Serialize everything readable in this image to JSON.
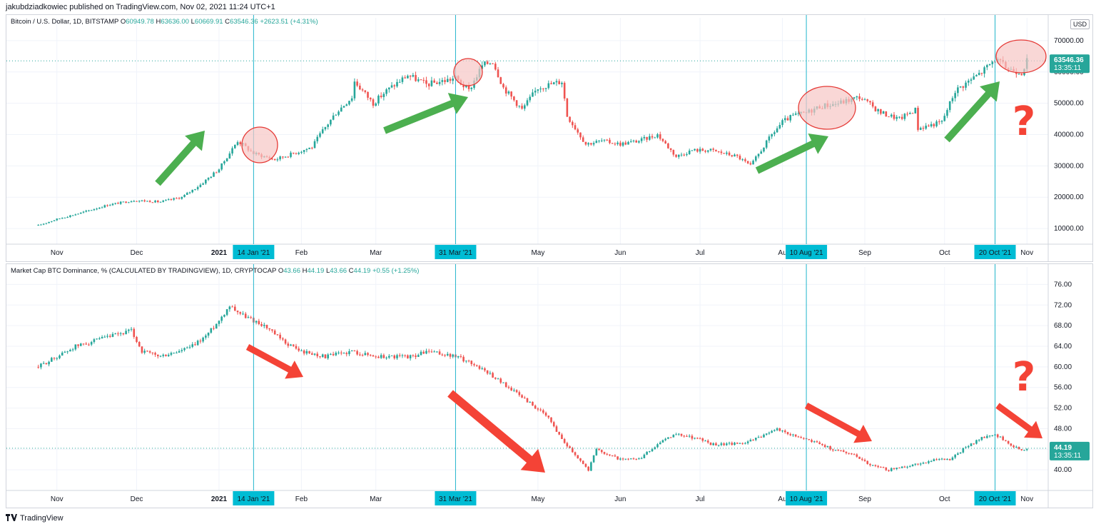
{
  "header": {
    "published": "jakubdziadkowiec published on TradingView.com, Nov 02, 2021 11:24 UTC+1"
  },
  "footer": {
    "brand": "TradingView",
    "logo": "tradingview-logo"
  },
  "colors": {
    "up": "#26a69a",
    "down": "#ef5350",
    "vline": "#22b5cc",
    "dateTag": "#00bcd4",
    "arrowGreen": "#4caf50",
    "arrowRed": "#f44336",
    "ellipseFill": "#f7c6c4",
    "ellipseStroke": "#e53935"
  },
  "pane1": {
    "symbol": "Bitcoin / U.S. Dollar, 1D, BITSTAMP",
    "o_label": "O",
    "o": "60949.78",
    "h_label": "H",
    "h": "63636.00",
    "l_label": "L",
    "l": "60669.91",
    "c_label": "C",
    "c": "63546.36",
    "change": "+2623.51 (+4.31%)",
    "currency": "USD",
    "price_tag": "63546.36",
    "timer": "13:35:11"
  },
  "pane2": {
    "symbol": "Market Cap BTC Dominance, % (CALCULATED BY TRADINGVIEW), 1D, CRYPTOCAP",
    "o_label": "O",
    "o": "43.66",
    "h_label": "H",
    "h": "44.19",
    "l_label": "L",
    "l": "43.66",
    "c_label": "C",
    "c": "44.19",
    "change": "+0.55 (+1.25%)",
    "price_tag": "44.19",
    "timer": "13:35:11"
  },
  "chart_data": [
    {
      "type": "line",
      "series": [
        {
          "name": "Bitcoin / U.S. Dollar",
          "values": [
            11000,
            13000,
            15000,
            17500,
            19000,
            18500,
            20000,
            24000,
            29000,
            38000,
            34000,
            32000,
            34000,
            36000,
            40000,
            47000,
            52000,
            57000,
            50000,
            54000,
            59000,
            56000,
            58000,
            54000,
            62000,
            63500,
            55000,
            48000,
            55000,
            57000,
            46000,
            37000,
            38000,
            37000,
            38000,
            40000,
            33000,
            35000,
            35000,
            34000,
            33000,
            30000,
            40000,
            44000,
            46000,
            47000,
            49000,
            50000,
            52000,
            47000,
            45000,
            48000,
            42000,
            44000,
            54000,
            60000,
            64000,
            61000,
            60000,
            63546
          ]
        }
      ],
      "x": [
        "2020-10-25",
        "2020-11-01",
        "2020-11-10",
        "2020-11-20",
        "2020-11-30",
        "2020-12-10",
        "2020-12-18",
        "2020-12-25",
        "2021-01-01",
        "2021-01-08",
        "2021-01-14",
        "2021-01-22",
        "2021-01-29",
        "2021-02-05",
        "2021-02-08",
        "2021-02-14",
        "2021-02-20",
        "2021-02-21",
        "2021-02-28",
        "2021-03-05",
        "2021-03-13",
        "2021-03-20",
        "2021-03-31",
        "2021-04-05",
        "2021-04-10",
        "2021-04-14",
        "2021-04-18",
        "2021-04-25",
        "2021-05-01",
        "2021-05-10",
        "2021-05-12",
        "2021-05-19",
        "2021-05-25",
        "2021-06-01",
        "2021-06-08",
        "2021-06-15",
        "2021-06-22",
        "2021-06-28",
        "2021-07-05",
        "2021-07-10",
        "2021-07-15",
        "2021-07-20",
        "2021-07-28",
        "2021-08-01",
        "2021-08-05",
        "2021-08-10",
        "2021-08-15",
        "2021-08-22",
        "2021-08-30",
        "2021-09-07",
        "2021-09-14",
        "2021-09-20",
        "2021-09-21",
        "2021-09-30",
        "2021-10-05",
        "2021-10-15",
        "2021-10-20",
        "2021-10-25",
        "2021-10-30",
        "2021-11-01"
      ],
      "ylim": [
        5000,
        75000
      ],
      "y_ticks": [
        "70000.00",
        "60000.00",
        "50000.00",
        "40000.00",
        "30000.00",
        "20000.00",
        "10000.00"
      ],
      "x_ticks": [
        "Nov",
        "Dec",
        "2021",
        "Feb",
        "Mar",
        "May",
        "Jun",
        "Jul",
        "Au",
        "Sep",
        "Oct",
        "Nov"
      ],
      "date_tags": [
        "14 Jan '21",
        "31 Mar '21",
        "10 Aug '21",
        "20 Oct '21"
      ],
      "annotations": [
        "?"
      ]
    },
    {
      "type": "line",
      "series": [
        {
          "name": "Market Cap BTC Dominance",
          "values": [
            60,
            62,
            64,
            65,
            66,
            67,
            63,
            62,
            63,
            64,
            66,
            69,
            72,
            70,
            68,
            65,
            63,
            62,
            63,
            62,
            62,
            62,
            63,
            62,
            61,
            59,
            56,
            53,
            50,
            46,
            43,
            40,
            44,
            42,
            42,
            45,
            47,
            46,
            45,
            45,
            46,
            48,
            47,
            46,
            45,
            44,
            43,
            41,
            40,
            41,
            42,
            42,
            44,
            46,
            47,
            45,
            44,
            44.19
          ]
        }
      ],
      "x": [
        "2020-10-25",
        "2020-11-01",
        "2020-11-08",
        "2020-11-15",
        "2020-11-22",
        "2020-11-29",
        "2020-12-03",
        "2020-12-10",
        "2020-12-17",
        "2020-12-22",
        "2020-12-27",
        "2021-01-01",
        "2021-01-05",
        "2021-01-10",
        "2021-01-18",
        "2021-01-25",
        "2021-02-01",
        "2021-02-10",
        "2021-02-20",
        "2021-03-01",
        "2021-03-10",
        "2021-03-15",
        "2021-03-20",
        "2021-03-31",
        "2021-04-05",
        "2021-04-12",
        "2021-04-20",
        "2021-04-28",
        "2021-05-05",
        "2021-05-10",
        "2021-05-15",
        "2021-05-20",
        "2021-05-23",
        "2021-06-01",
        "2021-06-08",
        "2021-06-15",
        "2021-06-22",
        "2021-07-01",
        "2021-07-05",
        "2021-07-15",
        "2021-07-22",
        "2021-07-29",
        "2021-08-03",
        "2021-08-10",
        "2021-08-15",
        "2021-08-20",
        "2021-08-28",
        "2021-09-03",
        "2021-09-10",
        "2021-09-20",
        "2021-09-28",
        "2021-10-03",
        "2021-10-08",
        "2021-10-14",
        "2021-10-20",
        "2021-10-25",
        "2021-10-30",
        "2021-11-01"
      ],
      "ylim": [
        36,
        78
      ],
      "y_ticks": [
        "76.00",
        "72.00",
        "68.00",
        "64.00",
        "60.00",
        "56.00",
        "52.00",
        "48.00",
        "44.00",
        "40.00"
      ],
      "x_ticks": [
        "Nov",
        "Dec",
        "2021",
        "Feb",
        "Mar",
        "May",
        "Jun",
        "Jul",
        "Au",
        "Sep",
        "Oct",
        "Nov"
      ],
      "date_tags": [
        "14 Jan '21",
        "31 Mar '21",
        "10 Aug '21",
        "20 Oct '21"
      ],
      "annotations": [
        "?"
      ]
    }
  ]
}
